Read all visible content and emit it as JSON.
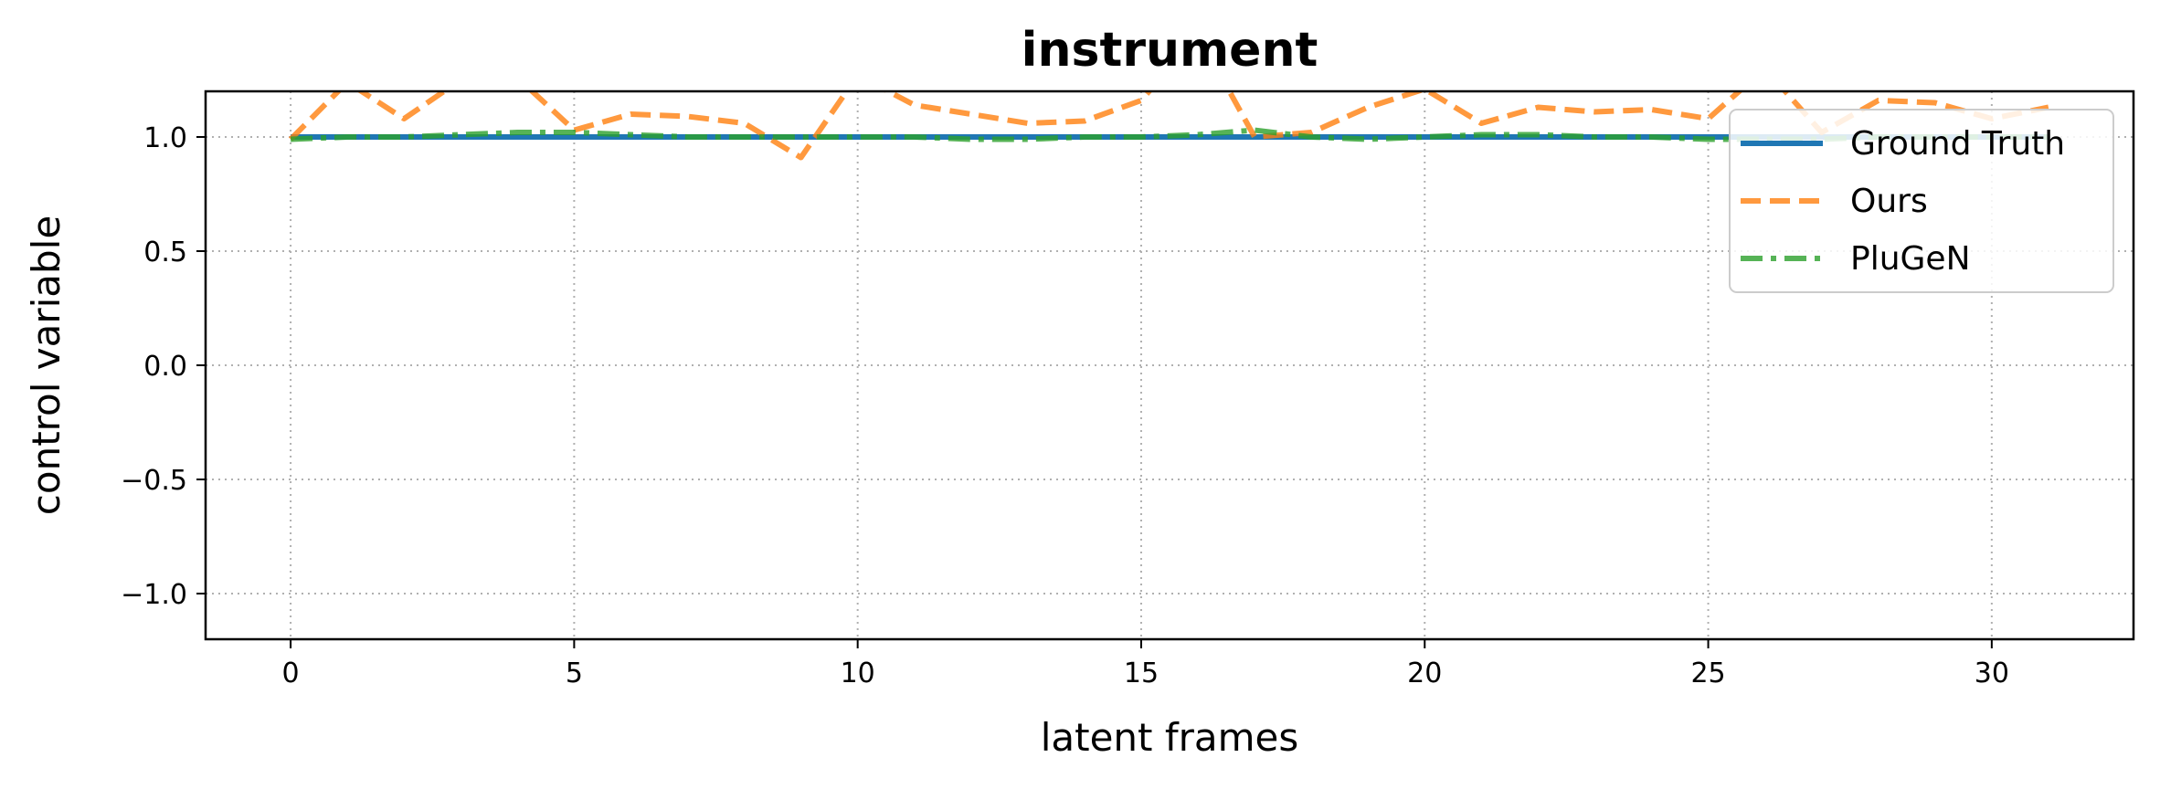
{
  "chart_data": {
    "type": "line",
    "title": "instrument",
    "xlabel": "latent frames",
    "ylabel": "control variable",
    "xlim": [
      -1.5,
      32.5
    ],
    "ylim": [
      -1.2,
      1.2
    ],
    "xticks": [
      0,
      5,
      10,
      15,
      20,
      25,
      30
    ],
    "yticks": [
      1.0,
      0.5,
      0.0,
      -0.5,
      -1.0
    ],
    "ytick_labels": [
      "1.0",
      "0.5",
      "0.0",
      "−0.5",
      "−1.0"
    ],
    "grid": true,
    "legend_position": "upper-right",
    "x": [
      0,
      1,
      2,
      3,
      4,
      5,
      6,
      7,
      8,
      9,
      10,
      11,
      12,
      13,
      14,
      15,
      16,
      17,
      18,
      19,
      20,
      21,
      22,
      23,
      24,
      25,
      26,
      27,
      28,
      29,
      30,
      31
    ],
    "series": [
      {
        "name": "Ground Truth",
        "color": "#1f77b4",
        "style": "solid",
        "values": [
          1.0,
          1.0,
          1.0,
          1.0,
          1.0,
          1.0,
          1.0,
          1.0,
          1.0,
          1.0,
          1.0,
          1.0,
          1.0,
          1.0,
          1.0,
          1.0,
          1.0,
          1.0,
          1.0,
          1.0,
          1.0,
          1.0,
          1.0,
          1.0,
          1.0,
          1.0,
          1.0,
          1.0,
          1.0,
          1.0,
          1.0,
          1.0
        ]
      },
      {
        "name": "Ours",
        "color": "#ff7f0e",
        "style": "dashed",
        "values": [
          0.99,
          1.24,
          1.08,
          1.25,
          1.26,
          1.03,
          1.1,
          1.09,
          1.06,
          0.91,
          1.27,
          1.14,
          1.1,
          1.06,
          1.07,
          1.16,
          1.45,
          1.0,
          1.02,
          1.13,
          1.21,
          1.06,
          1.13,
          1.11,
          1.12,
          1.08,
          1.3,
          1.02,
          1.16,
          1.15,
          1.08,
          1.13
        ]
      },
      {
        "name": "PluGeN",
        "color": "#2ca02c",
        "style": "dashdot",
        "values": [
          0.99,
          1.0,
          1.0,
          1.01,
          1.02,
          1.02,
          1.01,
          1.0,
          1.0,
          1.0,
          1.0,
          1.0,
          0.99,
          0.99,
          1.0,
          1.0,
          1.01,
          1.03,
          1.0,
          0.99,
          1.0,
          1.01,
          1.01,
          1.0,
          1.0,
          0.99,
          0.99,
          0.99,
          1.0,
          1.0,
          1.0,
          1.0
        ]
      }
    ]
  }
}
